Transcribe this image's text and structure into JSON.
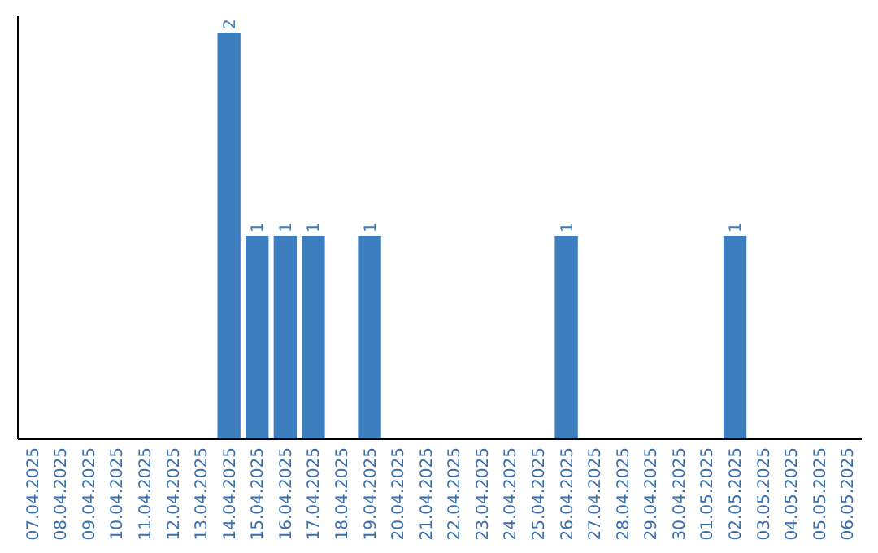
{
  "chart_data": {
    "type": "bar",
    "categories": [
      "07.04.2025",
      "08.04.2025",
      "09.04.2025",
      "10.04.2025",
      "11.04.2025",
      "12.04.2025",
      "13.04.2025",
      "14.04.2025",
      "15.04.2025",
      "16.04.2025",
      "17.04.2025",
      "18.04.2025",
      "19.04.2025",
      "20.04.2025",
      "21.04.2025",
      "22.04.2025",
      "23.04.2025",
      "24.04.2025",
      "25.04.2025",
      "26.04.2025",
      "27.04.2025",
      "28.04.2025",
      "29.04.2025",
      "30.04.2025",
      "01.05.2025",
      "02.05.2025",
      "03.05.2025",
      "04.05.2025",
      "05.05.2025",
      "06.05.2025"
    ],
    "values": [
      0,
      0,
      0,
      0,
      0,
      0,
      0,
      2,
      1,
      1,
      1,
      0,
      1,
      0,
      0,
      0,
      0,
      0,
      0,
      1,
      0,
      0,
      0,
      0,
      0,
      1,
      0,
      0,
      0,
      0
    ],
    "value_labels": [
      null,
      null,
      null,
      null,
      null,
      null,
      null,
      "2",
      "1",
      "1",
      "1",
      null,
      "1",
      null,
      null,
      null,
      null,
      null,
      null,
      "1",
      null,
      null,
      null,
      null,
      null,
      "1",
      null,
      null,
      null,
      null
    ],
    "color": "#3d7ebf",
    "ylim": [
      0,
      2
    ],
    "tick_labels": "x"
  }
}
